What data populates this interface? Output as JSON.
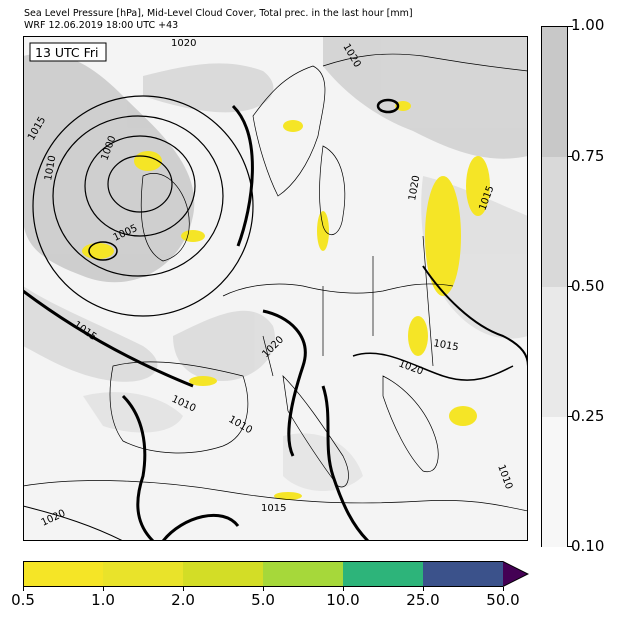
{
  "header": {
    "line1": "Sea Level Pressure [hPa], Mid-Level Cloud Cover, Total prec. in the last hour [mm]",
    "line2": "WRF 12.06.2019 18:00 UTC +43"
  },
  "map": {
    "time_label": "13 UTC Fri",
    "isobar_labels": [
      "1020",
      "1015",
      "1010",
      "1000",
      "1005",
      "1020",
      "1015",
      "1020",
      "1020",
      "1015",
      "1010",
      "1010",
      "1020",
      "1020",
      "1015",
      "1010",
      "1015"
    ]
  },
  "cloud_cover_colorbar": {
    "ticks": [
      "1.00",
      "0.75",
      "0.50",
      "0.25",
      "0.10"
    ],
    "colors": [
      "#c8c8c8",
      "#d9d9d9",
      "#e9e9e9",
      "#f7f7f7"
    ]
  },
  "precip_colorbar": {
    "ticks": [
      "0.5",
      "1.0",
      "2.0",
      "5.0",
      "10.0",
      "25.0",
      "50.0"
    ],
    "colors": [
      "#f5e526",
      "#e9e32a",
      "#d3dd26",
      "#a6d83a",
      "#2db47a",
      "#3b528b",
      "#440154"
    ]
  }
}
